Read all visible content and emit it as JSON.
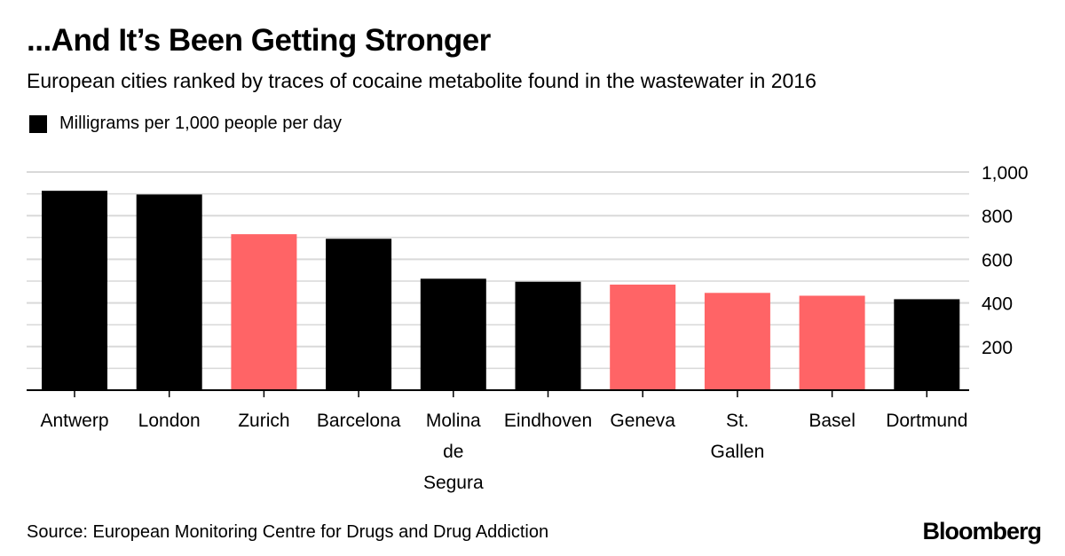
{
  "title": "...And It’s Been Getting Stronger",
  "subtitle": "European cities ranked by traces of cocaine metabolite found in the wastewater in 2016",
  "legend": {
    "label": "Milligrams per 1,000 people per day",
    "color": "#000000"
  },
  "source": "Source: European Monitoring Centre for Drugs and Drug Addiction",
  "brand": "Bloomberg",
  "colors": {
    "dark": "#000000",
    "highlight": "#ff6466",
    "grid": "#d9d9d9"
  },
  "chart_data": {
    "type": "bar",
    "categories": [
      "Antwerp",
      "London",
      "Zurich",
      "Barcelona",
      "Molina de Segura",
      "Eindhoven",
      "Geneva",
      "St. Gallen",
      "Basel",
      "Dortmund"
    ],
    "category_lines": [
      [
        "Antwerp"
      ],
      [
        "London"
      ],
      [
        "Zurich"
      ],
      [
        "Barcelona"
      ],
      [
        "Molina",
        "de",
        "Segura"
      ],
      [
        "Eindhoven"
      ],
      [
        "Geneva"
      ],
      [
        "St.",
        "Gallen"
      ],
      [
        "Basel"
      ],
      [
        "Dortmund"
      ]
    ],
    "values": [
      914,
      897,
      715,
      694,
      511,
      497,
      484,
      446,
      433,
      417
    ],
    "highlighted": [
      false,
      false,
      true,
      false,
      false,
      false,
      true,
      true,
      true,
      false
    ],
    "ylim": [
      0,
      1000
    ],
    "yticks": [
      200,
      400,
      600,
      800,
      1000
    ],
    "ytick_labels": [
      "200",
      "400",
      "600",
      "800",
      "1,000"
    ],
    "axis_position": "right",
    "grid": true,
    "title": "",
    "xlabel": "",
    "ylabel": ""
  }
}
